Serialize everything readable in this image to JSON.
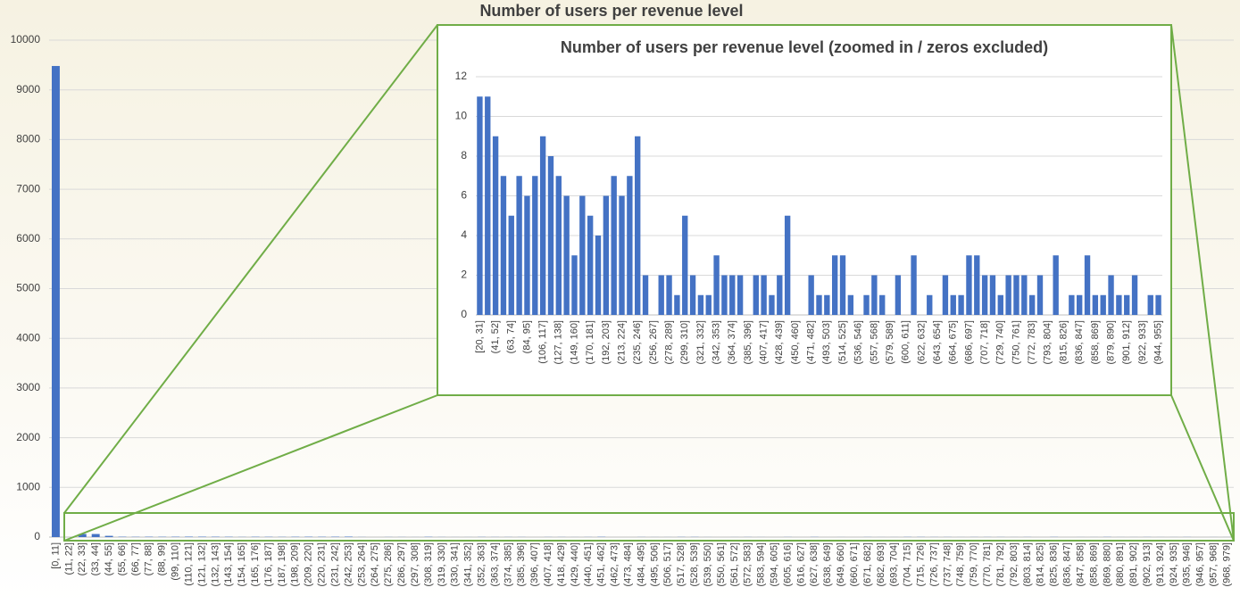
{
  "chart_data": [
    {
      "type": "bar",
      "title": "Number of users per revenue level",
      "categories": [
        "[0, 11]",
        "(11, 22]",
        "(22, 33]",
        "(33, 44]",
        "(44, 55]",
        "(55, 66]",
        "(66, 77]",
        "(77, 88]",
        "(88, 99]",
        "(99, 110]",
        "(110, 121]",
        "(121, 132]",
        "(132, 143]",
        "(143, 154]",
        "(154, 165]",
        "(165, 176]",
        "(176, 187]",
        "(187, 198]",
        "(198, 209]",
        "(209, 220]",
        "(220, 231]",
        "(231, 242]",
        "(242, 253]",
        "(253, 264]",
        "(264, 275]",
        "(275, 286]",
        "(286, 297]",
        "(297, 308]",
        "(308, 319]",
        "(319, 330]",
        "(330, 341]",
        "(341, 352]",
        "(352, 363]",
        "(363, 374]",
        "(374, 385]",
        "(385, 396]",
        "(396, 407]",
        "(407, 418]",
        "(418, 429]",
        "(429, 440]",
        "(440, 451]",
        "(451, 462]",
        "(462, 473]",
        "(473, 484]",
        "(484, 495]",
        "(495, 506]",
        "(506, 517]",
        "(517, 528]",
        "(528, 539]",
        "(539, 550]",
        "(550, 561]",
        "(561, 572]",
        "(572, 583]",
        "(583, 594]",
        "(594, 605]",
        "(605, 616]",
        "(616, 627]",
        "(627, 638]",
        "(638, 649]",
        "(649, 660]",
        "(660, 671]",
        "(671, 682]",
        "(682, 693]",
        "(693, 704]",
        "(704, 715]",
        "(715, 726]",
        "(726, 737]",
        "(737, 748]",
        "(748, 759]",
        "(759, 770]",
        "(770, 781]",
        "(781, 792]",
        "(792, 803]",
        "(803, 814]",
        "(814, 825]",
        "(825, 836]",
        "(836, 847]",
        "(847, 858]",
        "(858, 869]",
        "(869, 880]",
        "(880, 891]",
        "(891, 902]",
        "(902, 913]",
        "(913, 924]",
        "(924, 935]",
        "(935, 946]",
        "(946, 957]",
        "(957, 968]",
        "(968, 979]"
      ],
      "values": [
        9480,
        0,
        62,
        62,
        25,
        7,
        5,
        7,
        6,
        7,
        9,
        8,
        7,
        6,
        3,
        6,
        5,
        4,
        6,
        7,
        6,
        7,
        9,
        2,
        0,
        2,
        2,
        1,
        5,
        2,
        1,
        1,
        3,
        2,
        2,
        2,
        0,
        2,
        2,
        1,
        2,
        5,
        0,
        0,
        2,
        1,
        1,
        3,
        3,
        1,
        0,
        1,
        2,
        1,
        0,
        2,
        0,
        3,
        0,
        1,
        0,
        2,
        1,
        1,
        3,
        3,
        2,
        2,
        1,
        2,
        2,
        2,
        1,
        2,
        0,
        3,
        0,
        1,
        1,
        3,
        1,
        1,
        2,
        1,
        1,
        2,
        0,
        1,
        1
      ],
      "color": "#4472c4",
      "ylim": [
        0,
        10000
      ],
      "yticks": [
        0,
        1000,
        2000,
        3000,
        4000,
        5000,
        6000,
        7000,
        8000,
        9000,
        10000
      ],
      "grid": true
    },
    {
      "type": "bar",
      "title": "Number of users per revenue level (zoomed in / zeros excluded)",
      "categories": [
        "[20, 31]",
        null,
        "(41, 52]",
        null,
        "(63, 74]",
        null,
        "(84, 95]",
        null,
        "(106, 117]",
        null,
        "(127, 138]",
        null,
        "(149, 160]",
        null,
        "(170, 181]",
        null,
        "(192, 203]",
        null,
        "(213, 224]",
        null,
        "(235, 246]",
        null,
        "(256, 267]",
        null,
        "(278, 289]",
        null,
        "(299, 310]",
        null,
        "(321, 332]",
        null,
        "(342, 353]",
        null,
        "(364, 374]",
        null,
        "(385, 396]",
        null,
        "(407, 417]",
        null,
        "(428, 439]",
        null,
        "(450, 460]",
        null,
        "(471, 482]",
        null,
        "(493, 503]",
        null,
        "(514, 525]",
        null,
        "(536, 546]",
        null,
        "(557, 568]",
        null,
        "(579, 589]",
        null,
        "(600, 611]",
        null,
        "(622, 632]",
        null,
        "(643, 654]",
        null,
        "(664, 675]",
        null,
        "(686, 697]",
        null,
        "(707, 718]",
        null,
        "(729, 740]",
        null,
        "(750, 761]",
        null,
        "(772, 783]",
        null,
        "(793, 804]",
        null,
        "(815, 826]",
        null,
        "(836, 847]",
        null,
        "(858, 869]",
        null,
        "(879, 890]",
        null,
        "(901, 912]",
        null,
        "(922, 933]",
        null,
        "(944, 955]"
      ],
      "values": [
        11,
        11,
        9,
        7,
        5,
        7,
        6,
        7,
        9,
        8,
        7,
        6,
        3,
        6,
        5,
        4,
        6,
        7,
        6,
        7,
        9,
        2,
        0,
        2,
        2,
        1,
        5,
        2,
        1,
        1,
        3,
        2,
        2,
        2,
        0,
        2,
        2,
        1,
        2,
        5,
        0,
        0,
        2,
        1,
        1,
        3,
        3,
        1,
        0,
        1,
        2,
        1,
        0,
        2,
        0,
        3,
        0,
        1,
        0,
        2,
        1,
        1,
        3,
        3,
        2,
        2,
        1,
        2,
        2,
        2,
        1,
        2,
        0,
        3,
        0,
        1,
        1,
        3,
        1,
        1,
        2,
        1,
        1,
        2,
        0,
        1,
        1
      ],
      "color": "#4472c4",
      "ylim": [
        0,
        12
      ],
      "yticks": [
        0,
        2,
        4,
        6,
        8,
        10,
        12
      ],
      "grid": true
    }
  ]
}
